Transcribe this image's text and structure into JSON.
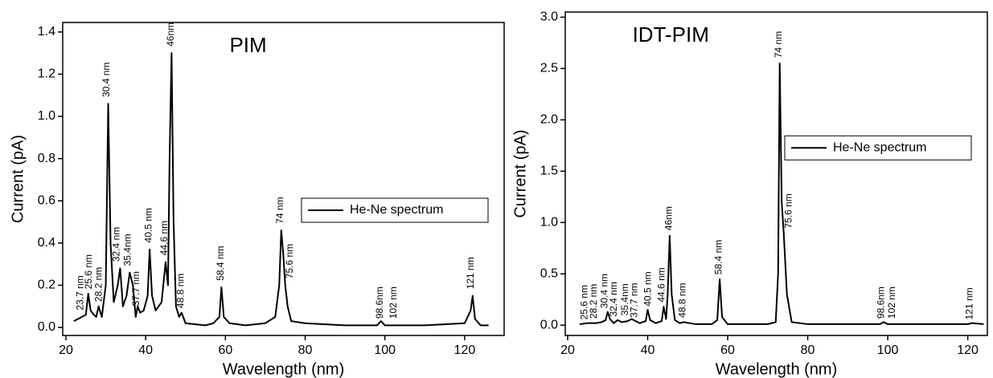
{
  "chart_data": [
    {
      "type": "line",
      "title": "PIM",
      "x_label": "Wavelength (nm)",
      "y_label": "Current (pA)",
      "xlim": [
        19.2,
        129.9
      ],
      "ylim": [
        -0.038,
        1.445
      ],
      "xticks": [
        20,
        40,
        60,
        80,
        100,
        120
      ],
      "yticks": [
        {
          "value": 0,
          "label": "0.0"
        },
        0.2,
        0.4,
        0.6,
        0.8,
        {
          "value": 1,
          "label": "1.0"
        },
        1.2,
        1.4
      ],
      "legend": "right",
      "series": [
        {
          "name": "He-Ne spectrum",
          "color": "#000000",
          "x": [
            22,
            23,
            24,
            25,
            25.6,
            26.2,
            27,
            27.6,
            28.2,
            29,
            30,
            30.6,
            31.2,
            32,
            33,
            33.6,
            34.3,
            35.2,
            36,
            36.8,
            37.5,
            38,
            38.6,
            39.5,
            40.5,
            41,
            41.6,
            42.5,
            44,
            45,
            45.6,
            46,
            46.5,
            47,
            47.6,
            48.4,
            49,
            50,
            55,
            57,
            58.5,
            59,
            59.6,
            61,
            65,
            70,
            72.5,
            73.5,
            74,
            74.5,
            75,
            75.6,
            76.5,
            80,
            90,
            98,
            99,
            100,
            102,
            110,
            120,
            121.5,
            122,
            122.6,
            124,
            126
          ],
          "values": [
            0.03,
            0.04,
            0.05,
            0.06,
            0.16,
            0.08,
            0.06,
            0.05,
            0.1,
            0.05,
            0.2,
            1.06,
            0.4,
            0.12,
            0.2,
            0.28,
            0.1,
            0.15,
            0.26,
            0.2,
            0.05,
            0.1,
            0.07,
            0.08,
            0.15,
            0.37,
            0.15,
            0.08,
            0.12,
            0.31,
            0.2,
            0.8,
            1.3,
            0.5,
            0.1,
            0.05,
            0.07,
            0.02,
            0.01,
            0.02,
            0.05,
            0.19,
            0.05,
            0.02,
            0.01,
            0.02,
            0.05,
            0.2,
            0.46,
            0.35,
            0.2,
            0.1,
            0.03,
            0.02,
            0.01,
            0.01,
            0.03,
            0.01,
            0.01,
            0.01,
            0.02,
            0.08,
            0.15,
            0.04,
            0.01,
            0.01
          ]
        }
      ],
      "annotations": [
        {
          "text": "23.7 nm",
          "x": 23.7,
          "y": 0.07
        },
        {
          "text": "25.6 nm",
          "x": 25.8,
          "y": 0.17
        },
        {
          "text": "28.2 nm",
          "x": 28.3,
          "y": 0.11
        },
        {
          "text": "30.4 nm",
          "x": 30.3,
          "y": 1.08
        },
        {
          "text": "32.4 nm",
          "x": 32.8,
          "y": 0.3
        },
        {
          "text": "35.4nm",
          "x": 35.6,
          "y": 0.28
        },
        {
          "text": "37.7 nm",
          "x": 37.7,
          "y": 0.09
        },
        {
          "text": "40.5 nm",
          "x": 40.8,
          "y": 0.39
        },
        {
          "text": "44.6 nm",
          "x": 44.8,
          "y": 0.33
        },
        {
          "text": "46nm",
          "x": 46.4,
          "y": 1.32
        },
        {
          "text": "48.8 nm",
          "x": 48.9,
          "y": 0.08
        },
        {
          "text": "58.4 nm",
          "x": 58.9,
          "y": 0.21
        },
        {
          "text": "74 nm",
          "x": 73.8,
          "y": 0.48
        },
        {
          "text": "75.6 nm",
          "x": 76.2,
          "y": 0.22
        },
        {
          "text": "98.6nm",
          "x": 98.8,
          "y": 0.03
        },
        {
          "text": "102 nm",
          "x": 102.2,
          "y": 0.03
        },
        {
          "text": "121 nm",
          "x": 121.6,
          "y": 0.17
        }
      ]
    },
    {
      "type": "line",
      "title": "IDT-PIM",
      "x_label": "Wavelength (nm)",
      "y_label": "Current (pA)",
      "xlim": [
        19.4,
        124.9
      ],
      "ylim": [
        -0.1,
        3.05
      ],
      "xticks": [
        20,
        40,
        60,
        80,
        100,
        120
      ],
      "yticks": [
        {
          "value": 0,
          "label": "0.0"
        },
        0.5,
        {
          "value": 1,
          "label": "1.0"
        },
        1.5,
        {
          "value": 2,
          "label": "2.0"
        },
        2.5,
        {
          "value": 3,
          "label": "3.0"
        }
      ],
      "legend": "right",
      "series": [
        {
          "name": "He-Ne spectrum",
          "color": "#000000",
          "x": [
            23,
            25,
            27,
            28.5,
            29.5,
            30,
            30.6,
            31.5,
            32.5,
            33.5,
            35,
            36,
            37,
            38,
            39.5,
            40,
            40.6,
            42,
            43.5,
            44,
            44.6,
            45,
            45.5,
            46,
            46.8,
            48,
            49,
            52,
            56,
            57.4,
            58,
            58.6,
            60,
            65,
            70,
            72,
            72.6,
            73,
            73.5,
            74,
            74.8,
            76,
            80,
            90,
            98,
            99,
            100,
            105,
            110,
            120,
            121,
            124
          ],
          "values": [
            0.01,
            0.02,
            0.02,
            0.03,
            0.05,
            0.13,
            0.06,
            0.02,
            0.05,
            0.03,
            0.04,
            0.06,
            0.04,
            0.02,
            0.04,
            0.15,
            0.05,
            0.02,
            0.04,
            0.18,
            0.06,
            0.3,
            0.87,
            0.3,
            0.05,
            0.02,
            0.03,
            0.01,
            0.01,
            0.05,
            0.45,
            0.08,
            0.01,
            0.01,
            0.01,
            0.03,
            0.5,
            2.55,
            1.2,
            0.9,
            0.3,
            0.03,
            0.01,
            0.01,
            0.01,
            0.03,
            0.01,
            0.01,
            0.01,
            0.01,
            0.02,
            0.01
          ]
        }
      ],
      "annotations": [
        {
          "text": "25.6 nm",
          "x": 24.3,
          "y": 0.03
        },
        {
          "text": "28.2 nm",
          "x": 26.6,
          "y": 0.04
        },
        {
          "text": "30.4 nm",
          "x": 29.3,
          "y": 0.14
        },
        {
          "text": "32.4 nm",
          "x": 31.6,
          "y": 0.06
        },
        {
          "text": "35.4nm",
          "x": 34.4,
          "y": 0.07
        },
        {
          "text": "37.7 nm",
          "x": 36.8,
          "y": 0.05
        },
        {
          "text": "40.5 nm",
          "x": 40.2,
          "y": 0.16
        },
        {
          "text": "44.6 nm",
          "x": 43.6,
          "y": 0.2
        },
        {
          "text": "46nm",
          "x": 45.4,
          "y": 0.9
        },
        {
          "text": "48.8 nm",
          "x": 48.8,
          "y": 0.05
        },
        {
          "text": "58.4 nm",
          "x": 57.9,
          "y": 0.47
        },
        {
          "text": "74 nm",
          "x": 72.8,
          "y": 2.58
        },
        {
          "text": "75.6 nm",
          "x": 75.3,
          "y": 0.92
        },
        {
          "text": "98.6nm",
          "x": 98.4,
          "y": 0.04
        },
        {
          "text": "102 nm",
          "x": 101.2,
          "y": 0.04
        },
        {
          "text": "121 nm",
          "x": 120.5,
          "y": 0.03
        }
      ]
    }
  ]
}
